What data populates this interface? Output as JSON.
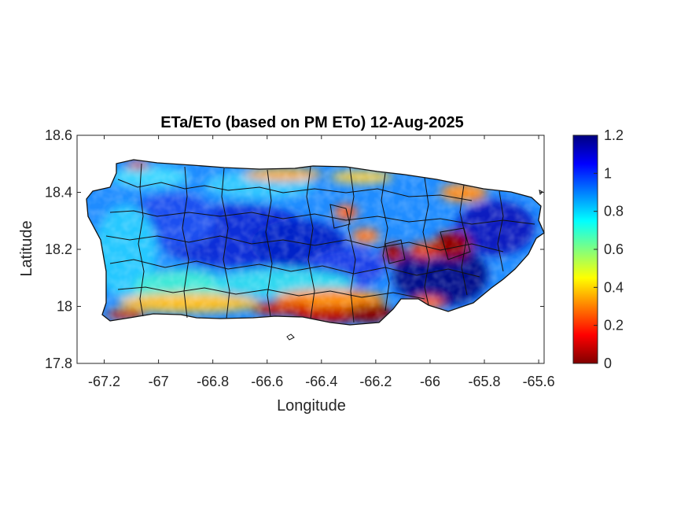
{
  "title": "ETa/ETo (based on PM ETo) 12-Aug-2025",
  "map": {
    "xlabel": "Longitude",
    "ylabel": "Latitude",
    "xlim": [
      -67.3,
      -65.58
    ],
    "ylim": [
      17.8,
      18.6
    ],
    "xticks": [
      -67.2,
      -67,
      -66.8,
      -66.6,
      -66.4,
      -66.2,
      -66,
      -65.8,
      -65.6
    ],
    "yticks": [
      17.8,
      18,
      18.2,
      18.4,
      18.6
    ],
    "xtick_labels": [
      "-67.2",
      "-67",
      "-66.8",
      "-66.6",
      "-66.4",
      "-66.2",
      "-66",
      "-65.8",
      "-65.6"
    ],
    "ytick_labels": [
      "17.8",
      "18",
      "18.2",
      "18.4",
      "18.6"
    ],
    "colormap": "jet",
    "coastline_color": "#000000",
    "background": "#ffffff"
  },
  "colorbar": {
    "range": [
      0,
      1.2
    ],
    "ticks": [
      0,
      0.2,
      0.4,
      0.6,
      0.8,
      1,
      1.2
    ],
    "tick_labels": [
      "0",
      "0.2",
      "0.4",
      "0.6",
      "0.8",
      "1",
      "1.2"
    ],
    "colors": [
      "#800000",
      "#ff0000",
      "#ffff00",
      "#00ffff",
      "#0000ff",
      "#000080"
    ]
  }
}
